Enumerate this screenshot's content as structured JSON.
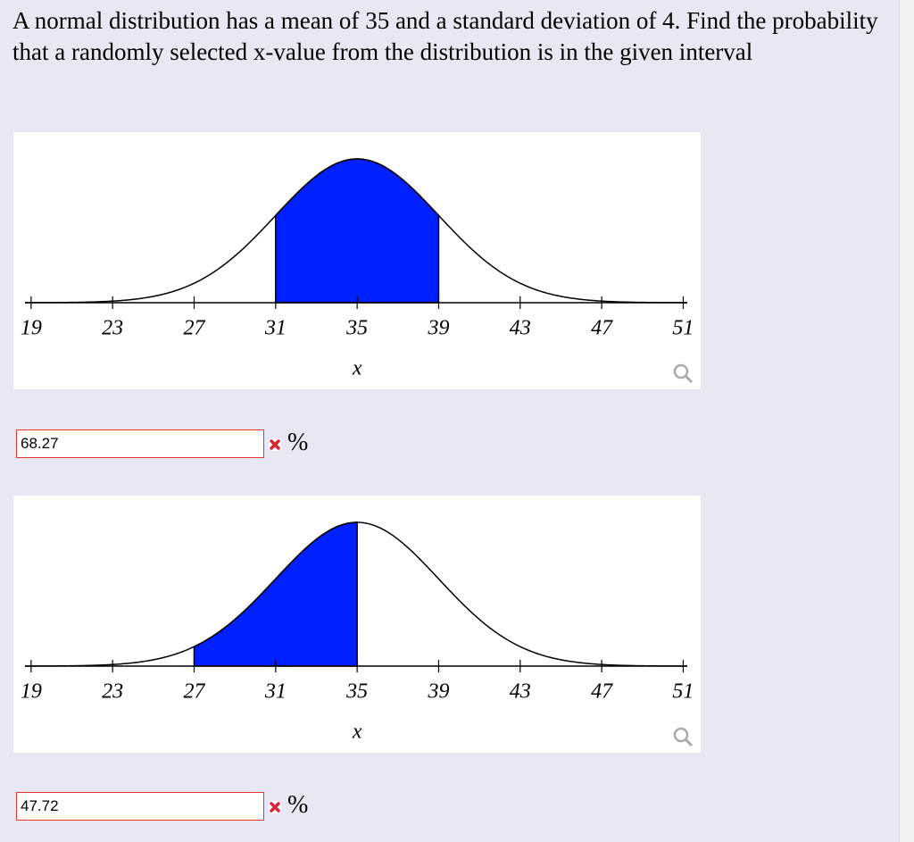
{
  "question": {
    "parts": [
      "A normal distribution has a mean of ",
      " and a standard deviation of ",
      ". Find the probability that a randomly selected x-value from the distribution is in the given interval"
    ],
    "mean": 35,
    "sd": 4
  },
  "chart_data": [
    {
      "type": "normal",
      "xlim": [
        18.7,
        51.2
      ],
      "xticks": [
        19,
        23,
        27,
        31,
        35,
        39,
        43,
        47,
        51
      ],
      "xlabel": "x",
      "shade": [
        31,
        39
      ],
      "color": "#0020ff"
    },
    {
      "type": "normal",
      "xlim": [
        18.7,
        51.2
      ],
      "xticks": [
        19,
        23,
        27,
        31,
        35,
        39,
        43,
        47,
        51
      ],
      "xlabel": "x",
      "shade": [
        27,
        35
      ],
      "color": "#0020ff"
    }
  ],
  "answers": [
    {
      "value": "68.27",
      "unit": "%"
    },
    {
      "value": "47.72",
      "unit": "%"
    }
  ]
}
